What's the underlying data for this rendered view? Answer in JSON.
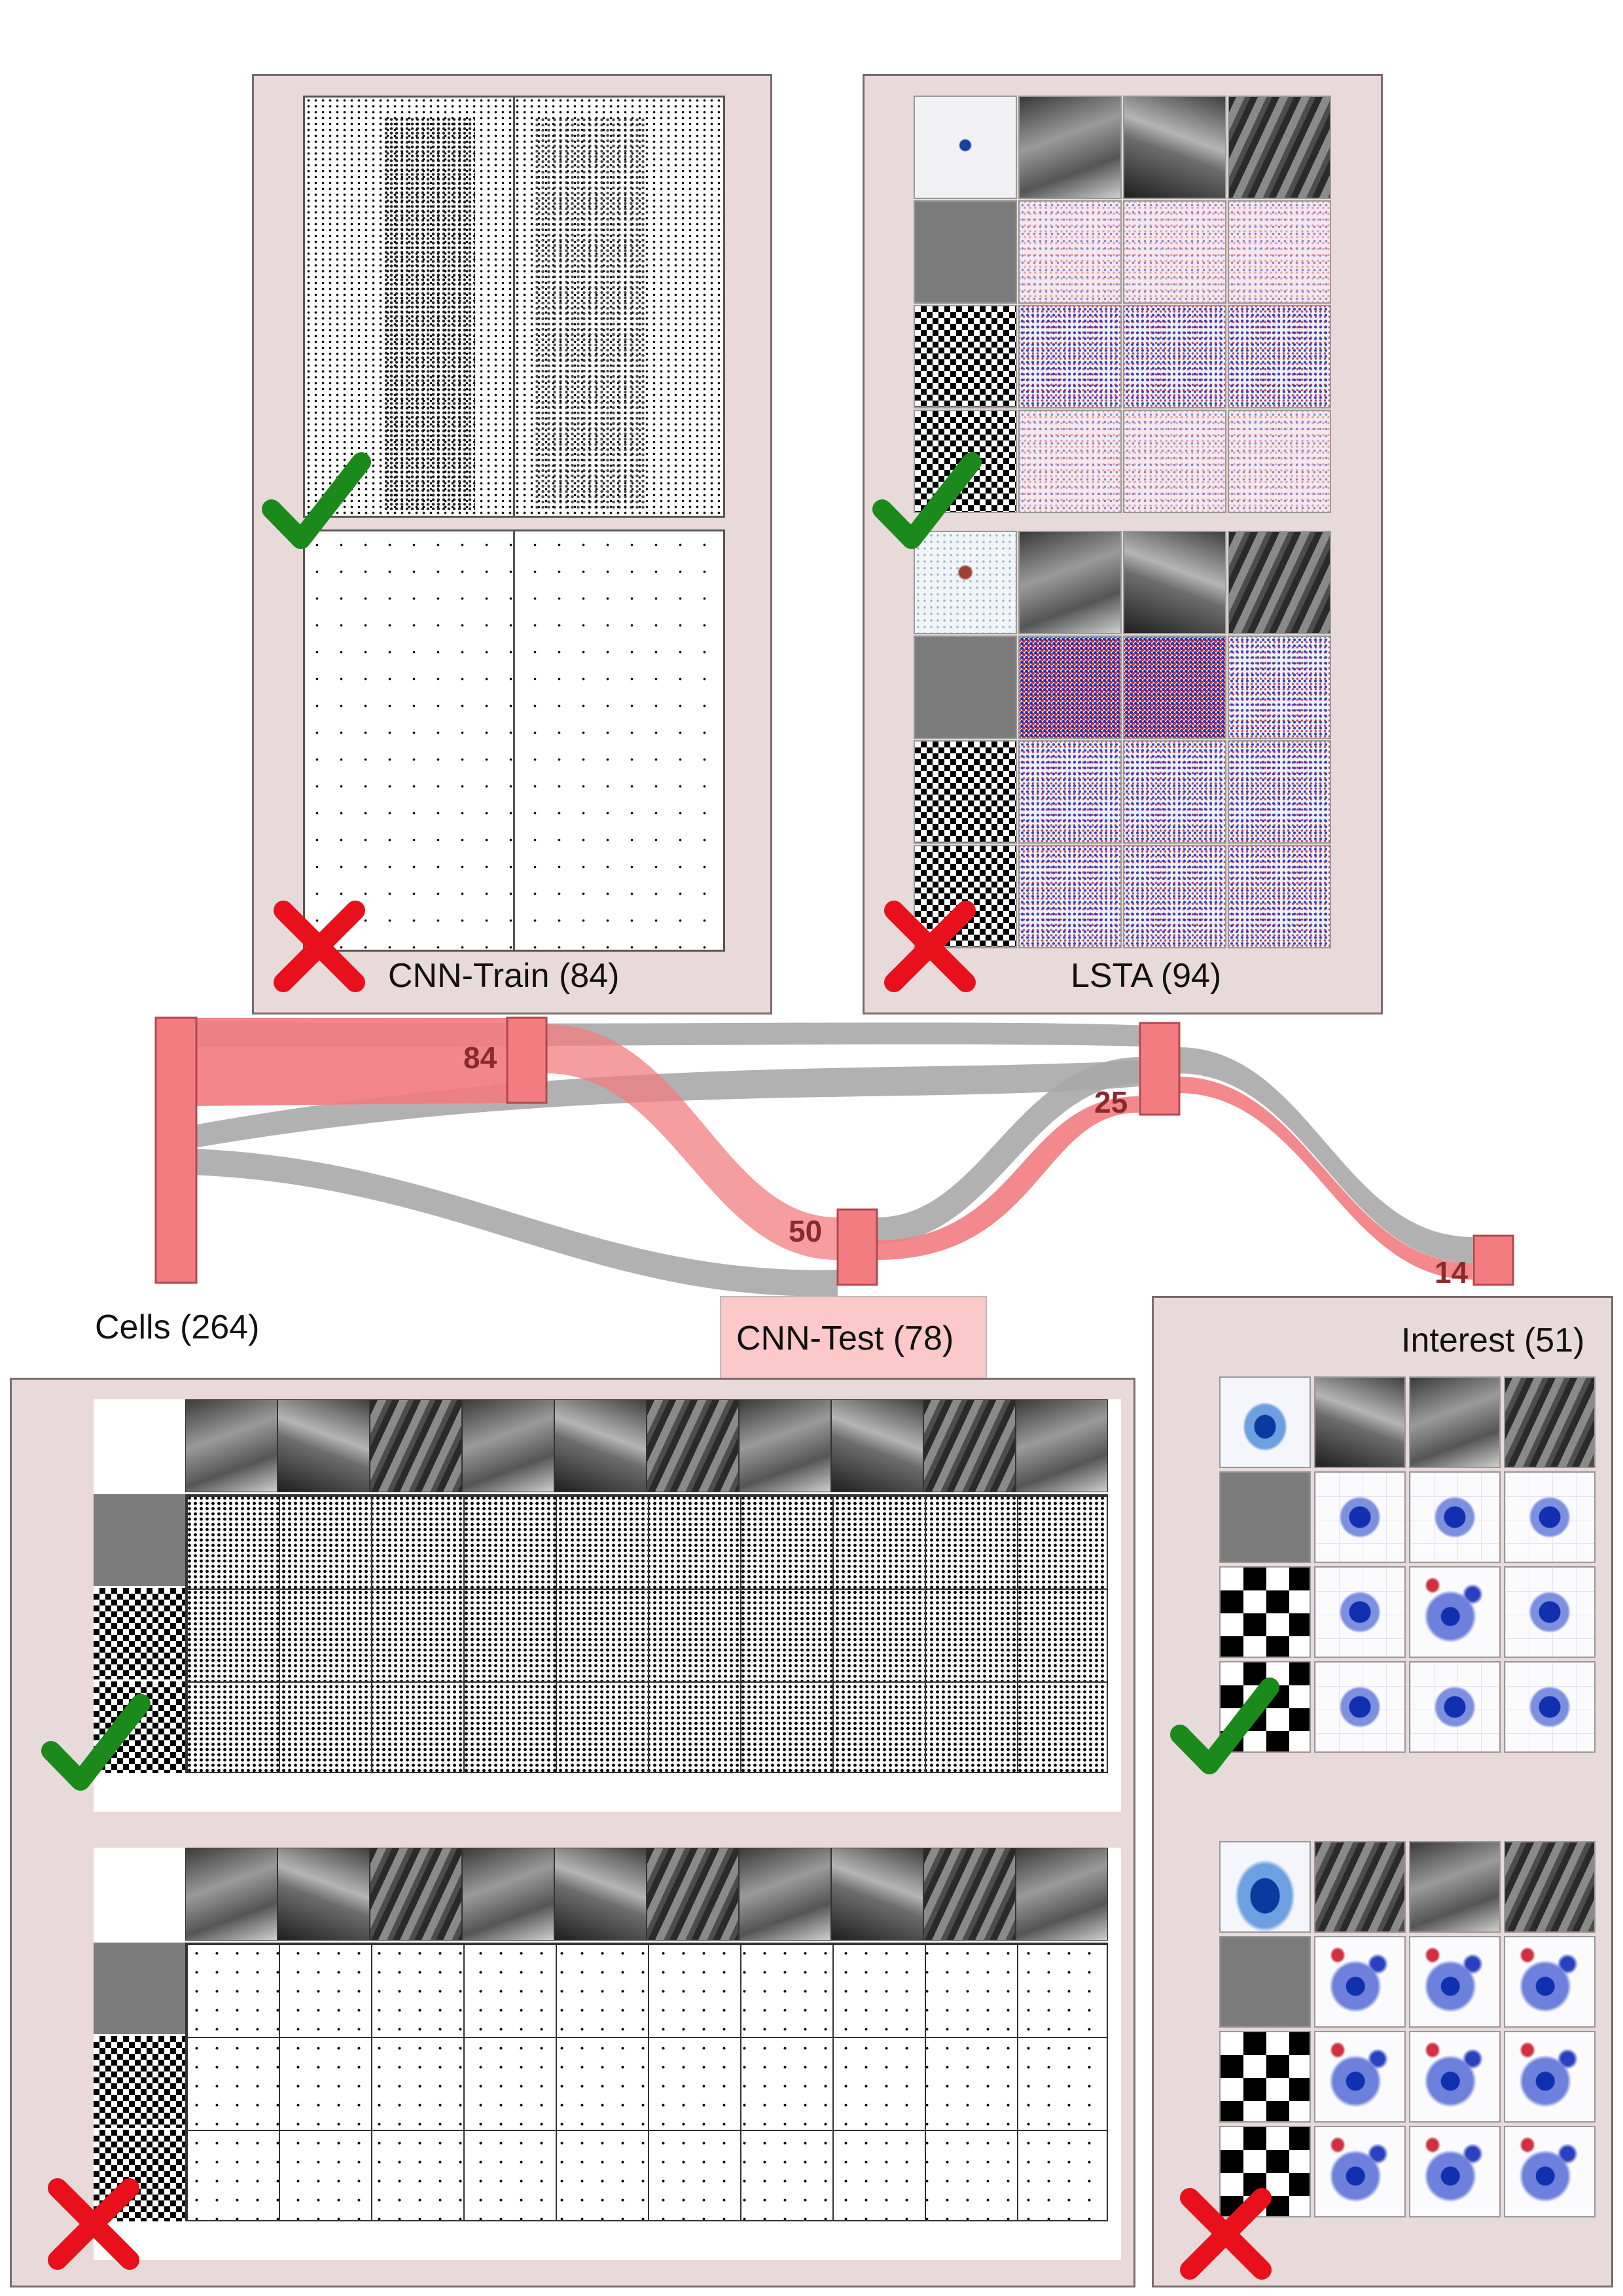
{
  "panels": {
    "cnn_train": {
      "label": "CNN-Train (84)"
    },
    "lsta": {
      "label": "LSTA (94)"
    },
    "cnn_test": {
      "label": "CNN-Test (78)"
    },
    "interest": {
      "label": "Interest (51)"
    },
    "cells": {
      "label": "Cells (264)"
    }
  },
  "flow": {
    "nodes": [
      {
        "id": "cells",
        "value": ""
      },
      {
        "id": "cnn_train",
        "value": "84"
      },
      {
        "id": "lsta",
        "value": "25"
      },
      {
        "id": "cnn_test",
        "value": "50"
      },
      {
        "id": "interest",
        "value": "14"
      }
    ]
  },
  "marks": {
    "accept": "check-icon",
    "reject": "cross-icon"
  },
  "colors": {
    "panel_bg": "#e8d9da",
    "flow_selected": "#f27c7f",
    "flow_other": "#a9a9a9",
    "check": "#1a8a1a",
    "cross": "#e8101a"
  }
}
